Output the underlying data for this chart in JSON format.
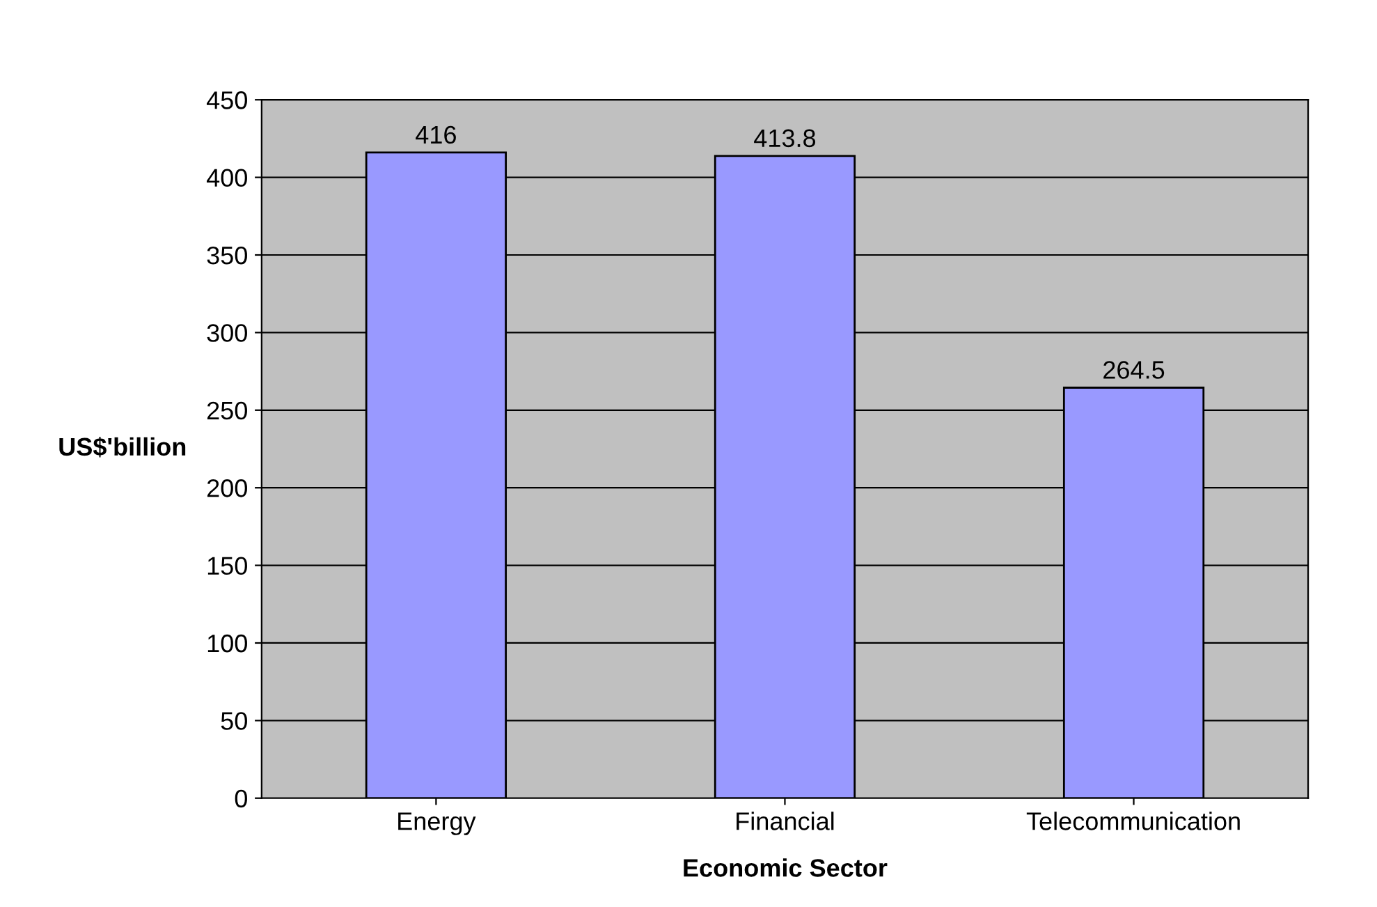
{
  "chart_data": {
    "type": "bar",
    "xlabel": "Economic Sector",
    "ylabel": "US$'billion",
    "categories": [
      "Energy",
      "Financial",
      "Telecommunication"
    ],
    "values": [
      416,
      413.8,
      264.5
    ],
    "color": "#9999ff",
    "ylim": [
      0,
      450
    ],
    "yticks": [
      0,
      50,
      100,
      150,
      200,
      250,
      300,
      350,
      400,
      450
    ],
    "grid": "y",
    "data_labels": true
  }
}
